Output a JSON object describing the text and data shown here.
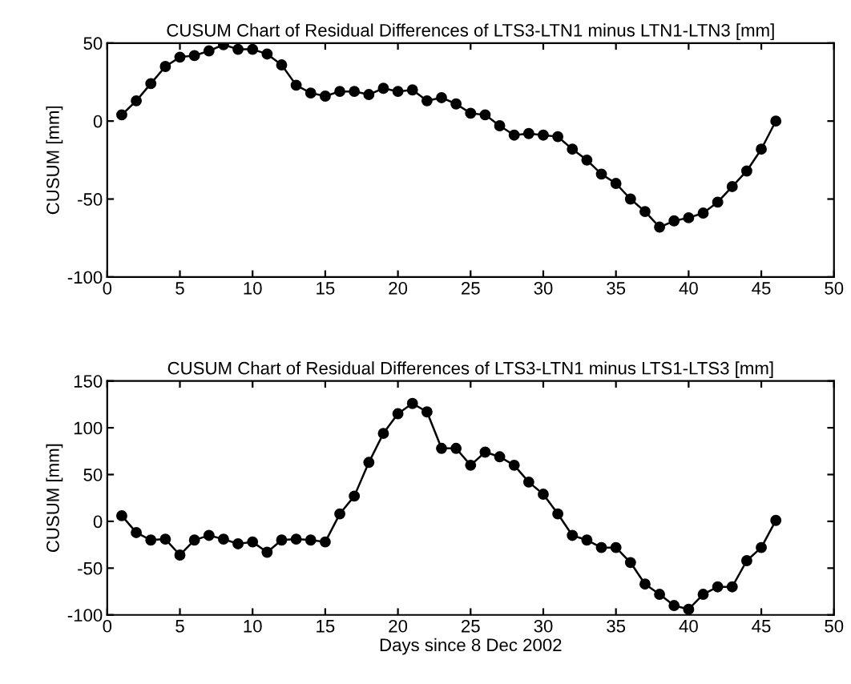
{
  "chart_data": [
    {
      "type": "line",
      "title": "CUSUM Chart of Residual Differences of LTS3-LTN1 minus LTN1-LTN3 [mm]",
      "ylabel": "CUSUM [mm]",
      "x": [
        1,
        2,
        3,
        4,
        5,
        6,
        7,
        8,
        9,
        10,
        11,
        12,
        13,
        14,
        15,
        16,
        17,
        18,
        19,
        20,
        21,
        22,
        23,
        24,
        25,
        26,
        27,
        28,
        29,
        30,
        31,
        32,
        33,
        34,
        35,
        36,
        37,
        38,
        39,
        40,
        41,
        42,
        43,
        44,
        45,
        46
      ],
      "series": [
        {
          "color": "#000000",
          "values": [
            4,
            13,
            24,
            35,
            41,
            42,
            45,
            49,
            46,
            46,
            43,
            36,
            23,
            18,
            16,
            19,
            19,
            17,
            21,
            19,
            20,
            13,
            15,
            11,
            5,
            4,
            -3,
            -9,
            -8,
            -9,
            -10,
            -18,
            -25,
            -34,
            -40,
            -50,
            -58,
            -68,
            -64,
            -62,
            -59,
            -52,
            -42,
            -32,
            -18,
            0
          ]
        }
      ],
      "xlim": [
        0,
        50
      ],
      "xticks": [
        0,
        5,
        10,
        15,
        20,
        25,
        30,
        35,
        40,
        45,
        50
      ],
      "ylim": [
        -100,
        50
      ],
      "yticks": [
        -100,
        -50,
        0,
        50
      ],
      "marker": "circle",
      "line_style": "solid",
      "grid": false,
      "legend": false
    },
    {
      "type": "line",
      "title": "CUSUM Chart of Residual Differences of LTS3-LTN1 minus LTS1-LTS3 [mm]",
      "ylabel": "CUSUM [mm]",
      "xlabel": "Days since 8 Dec 2002",
      "x": [
        1,
        2,
        3,
        4,
        5,
        6,
        7,
        8,
        9,
        10,
        11,
        12,
        13,
        14,
        15,
        16,
        17,
        18,
        19,
        20,
        21,
        22,
        23,
        24,
        25,
        26,
        27,
        28,
        29,
        30,
        31,
        32,
        33,
        34,
        35,
        36,
        37,
        38,
        39,
        40,
        41,
        42,
        43,
        44,
        45,
        46
      ],
      "series": [
        {
          "color": "#000000",
          "values": [
            6,
            -12,
            -20,
            -19,
            -36,
            -20,
            -15,
            -19,
            -24,
            -22,
            -33,
            -20,
            -19,
            -20,
            -22,
            8,
            27,
            63,
            94,
            115,
            126,
            117,
            78,
            78,
            60,
            74,
            69,
            60,
            42,
            29,
            8,
            -15,
            -20,
            -28,
            -28,
            -44,
            -67,
            -78,
            -90,
            -94,
            -78,
            -70,
            -70,
            -42,
            -28,
            1
          ]
        }
      ],
      "xlim": [
        0,
        50
      ],
      "xticks": [
        0,
        5,
        10,
        15,
        20,
        25,
        30,
        35,
        40,
        45,
        50
      ],
      "ylim": [
        -100,
        150
      ],
      "yticks": [
        -100,
        -50,
        0,
        50,
        100,
        150
      ],
      "marker": "circle",
      "line_style": "solid",
      "grid": false,
      "legend": false
    }
  ]
}
